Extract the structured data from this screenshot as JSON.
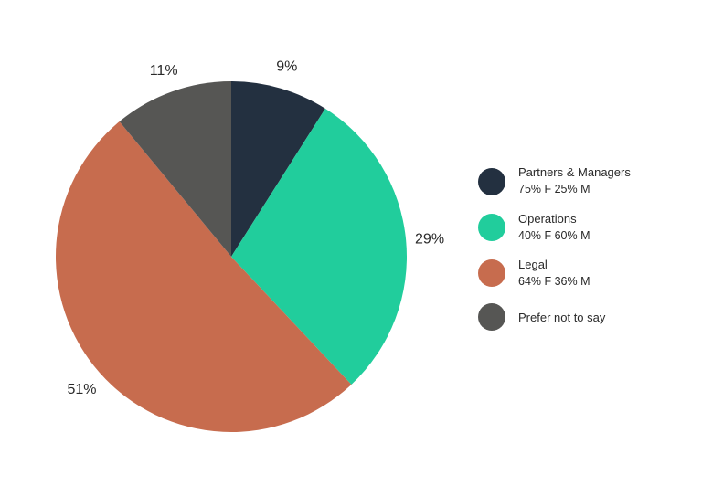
{
  "chart_data": {
    "type": "pie",
    "slices": [
      {
        "name": "Partners & Managers",
        "value": 9,
        "label": "9%",
        "color": "#233040"
      },
      {
        "name": "Operations",
        "value": 29,
        "label": "29%",
        "color": "#21CD9C"
      },
      {
        "name": "Legal",
        "value": 51,
        "label": "51%",
        "color": "#C76C4E"
      },
      {
        "name": "Prefer not to say",
        "value": 11,
        "label": "11%",
        "color": "#565654"
      }
    ],
    "legend_position": "right",
    "start_angle": "12 o'clock",
    "direction": "clockwise"
  },
  "legend": [
    {
      "title": "Partners & Managers",
      "sub": "75% F 25% M"
    },
    {
      "title": "Operations",
      "sub": "40% F 60% M"
    },
    {
      "title": "Legal",
      "sub": "64% F 36% M"
    },
    {
      "title": "Prefer not to say",
      "sub": ""
    }
  ]
}
